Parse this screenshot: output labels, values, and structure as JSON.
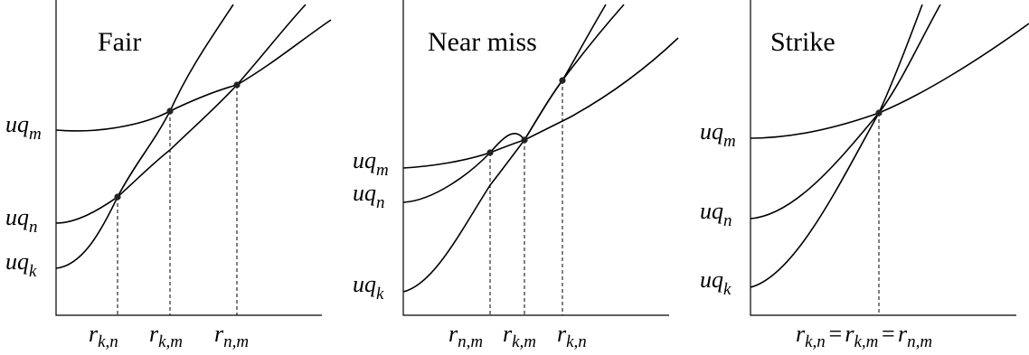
{
  "panels": [
    {
      "title": "Fair",
      "y_labels": [
        {
          "base": "u",
          "var": "q",
          "sub": "m"
        },
        {
          "base": "u",
          "var": "q",
          "sub": "n"
        },
        {
          "base": "u",
          "var": "q",
          "sub": "k"
        }
      ],
      "x_labels": [
        {
          "base": "r",
          "sub": "k,n"
        },
        {
          "base": "r",
          "sub": "k,m"
        },
        {
          "base": "r",
          "sub": "n,m"
        }
      ]
    },
    {
      "title": "Near miss",
      "y_labels": [
        {
          "base": "u",
          "var": "q",
          "sub": "m"
        },
        {
          "base": "u",
          "var": "q",
          "sub": "n"
        },
        {
          "base": "u",
          "var": "q",
          "sub": "k"
        }
      ],
      "x_labels": [
        {
          "base": "r",
          "sub": "n,m"
        },
        {
          "base": "r",
          "sub": "k,m"
        },
        {
          "base": "r",
          "sub": "k,n"
        }
      ]
    },
    {
      "title": "Strike",
      "y_labels": [
        {
          "base": "u",
          "var": "q",
          "sub": "m"
        },
        {
          "base": "u",
          "var": "q",
          "sub": "n"
        },
        {
          "base": "u",
          "var": "q",
          "sub": "k"
        }
      ],
      "x_label_combined": {
        "terms": [
          {
            "base": "r",
            "sub": "k,n"
          },
          {
            "base": "r",
            "sub": "k,m"
          },
          {
            "base": "r",
            "sub": "n,m"
          }
        ],
        "separator": "="
      }
    }
  ]
}
